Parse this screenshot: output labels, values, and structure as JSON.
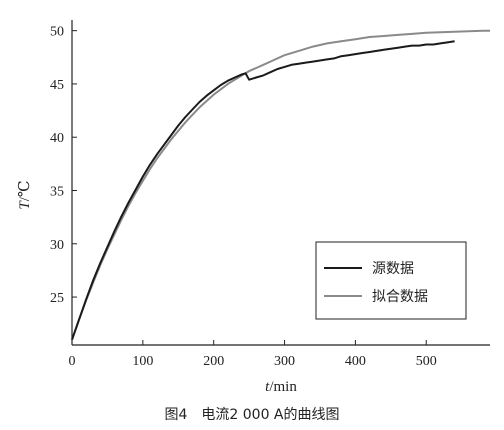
{
  "caption": "图4　电流2 000 A的曲线图",
  "chart_data": {
    "type": "line",
    "xlabel_italic": "t",
    "xlabel_unit": "/min",
    "ylabel_italic": "T",
    "ylabel_unit": "/℃",
    "xlim": [
      0,
      590
    ],
    "ylim": [
      20.5,
      51
    ],
    "xticks": [
      0,
      100,
      200,
      300,
      400,
      500
    ],
    "yticks": [
      25,
      30,
      35,
      40,
      45,
      50
    ],
    "grid": false,
    "legend_position": "bottom-right",
    "series": [
      {
        "name": "源数据",
        "color": "#1a1a1a",
        "x": [
          0,
          10,
          20,
          30,
          40,
          50,
          60,
          70,
          80,
          90,
          100,
          110,
          120,
          130,
          140,
          150,
          160,
          170,
          180,
          190,
          200,
          210,
          220,
          230,
          240,
          245,
          250,
          255,
          260,
          270,
          280,
          290,
          300,
          310,
          320,
          330,
          340,
          350,
          360,
          370,
          380,
          390,
          400,
          410,
          420,
          430,
          440,
          450,
          460,
          470,
          480,
          490,
          500,
          510,
          520,
          530,
          540
        ],
        "y": [
          21.0,
          22.9,
          24.8,
          26.6,
          28.2,
          29.7,
          31.2,
          32.6,
          33.9,
          35.1,
          36.3,
          37.4,
          38.4,
          39.3,
          40.2,
          41.1,
          41.9,
          42.6,
          43.3,
          43.9,
          44.4,
          44.9,
          45.3,
          45.6,
          45.9,
          46.0,
          45.4,
          45.5,
          45.6,
          45.8,
          46.1,
          46.4,
          46.6,
          46.8,
          46.9,
          47.0,
          47.1,
          47.2,
          47.3,
          47.4,
          47.6,
          47.7,
          47.8,
          47.9,
          48.0,
          48.1,
          48.2,
          48.3,
          48.4,
          48.5,
          48.6,
          48.6,
          48.7,
          48.7,
          48.8,
          48.9,
          49.0
        ]
      },
      {
        "name": "拟合数据",
        "color": "#8a8a8a",
        "x": [
          0,
          10,
          20,
          30,
          40,
          50,
          60,
          70,
          80,
          90,
          100,
          110,
          120,
          130,
          140,
          150,
          160,
          170,
          180,
          190,
          200,
          210,
          220,
          230,
          240,
          250,
          260,
          270,
          280,
          290,
          300,
          320,
          340,
          360,
          380,
          400,
          420,
          440,
          460,
          480,
          500,
          520,
          540,
          560,
          580,
          590
        ],
        "y": [
          21.0,
          22.9,
          24.7,
          26.4,
          28.0,
          29.5,
          30.9,
          32.3,
          33.6,
          34.8,
          35.9,
          37.0,
          38.0,
          38.9,
          39.8,
          40.6,
          41.4,
          42.1,
          42.8,
          43.4,
          44.0,
          44.5,
          45.0,
          45.4,
          45.8,
          46.2,
          46.5,
          46.8,
          47.1,
          47.4,
          47.7,
          48.1,
          48.5,
          48.8,
          49.0,
          49.2,
          49.4,
          49.5,
          49.6,
          49.7,
          49.8,
          49.85,
          49.9,
          49.95,
          50.0,
          50.0
        ]
      }
    ]
  }
}
